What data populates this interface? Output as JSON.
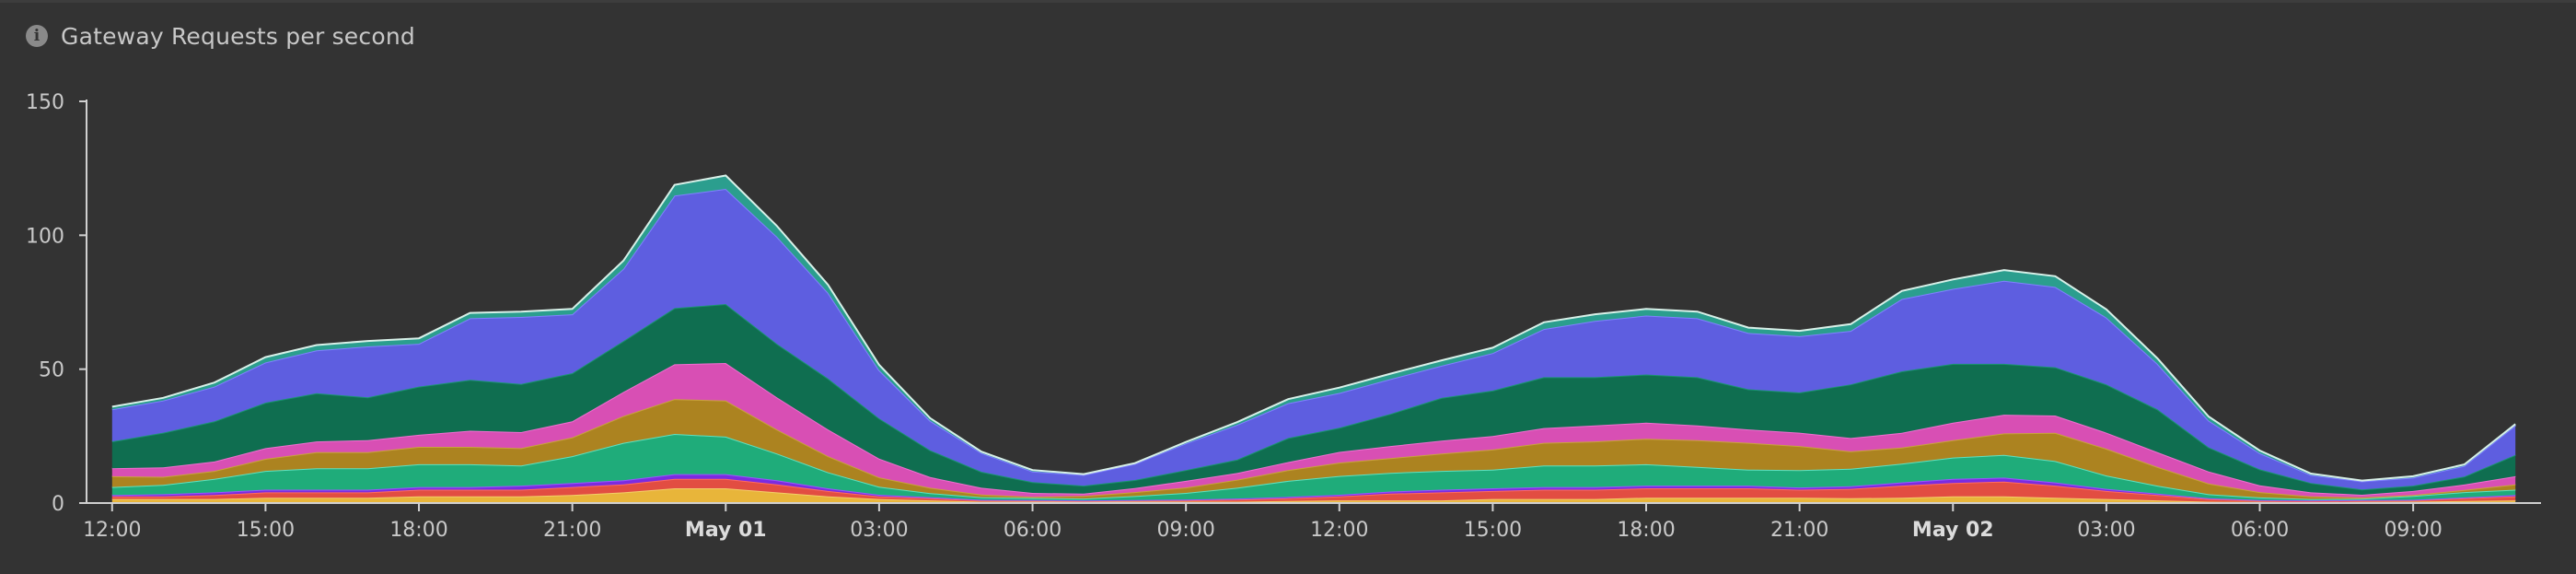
{
  "panel": {
    "title": "Gateway Requests per second",
    "info_icon": "info-icon"
  },
  "chart_data": {
    "type": "area",
    "stacked": true,
    "title": "Gateway Requests per second",
    "xlabel": "",
    "ylabel": "",
    "ylim": [
      0,
      150
    ],
    "y_ticks": [
      0,
      50,
      100,
      150
    ],
    "x_ticks": [
      "12:00",
      "15:00",
      "18:00",
      "21:00",
      "May 01",
      "03:00",
      "06:00",
      "09:00",
      "12:00",
      "15:00",
      "18:00",
      "21:00",
      "May 02",
      "03:00",
      "06:00",
      "09:00"
    ],
    "x_ticks_bold": [
      "May 01",
      "May 02"
    ],
    "x_range_hours": [
      -0.5,
      47.5
    ],
    "x_hours": [
      0,
      1,
      2,
      3,
      4,
      5,
      6,
      7,
      8,
      9,
      10,
      11,
      12,
      13,
      14,
      15,
      16,
      17,
      18,
      19,
      20,
      21,
      22,
      23,
      24,
      25,
      26,
      27,
      28,
      29,
      30,
      31,
      32,
      33,
      34,
      35,
      36,
      37,
      38,
      39,
      40,
      41,
      42,
      43,
      44,
      45,
      46,
      47
    ],
    "grid": false,
    "legend": "none",
    "series": [
      {
        "color": "#e8b53a",
        "stroke": "#f3cf6a",
        "values": [
          1.5,
          1.5,
          1.5,
          2,
          2,
          2,
          2.5,
          2.5,
          2.5,
          3,
          4,
          5.5,
          5.5,
          4,
          2.5,
          1.5,
          1,
          0.5,
          0.5,
          0.5,
          0.5,
          0.5,
          0.5,
          0.8,
          1,
          1,
          1,
          1.5,
          1.5,
          1.5,
          2,
          2,
          2,
          2,
          1.8,
          2,
          2.5,
          2.5,
          2,
          1.5,
          1,
          0.5,
          0.4,
          0.3,
          0.4,
          0.5,
          0.8,
          1
        ]
      },
      {
        "color": "#e24d42",
        "stroke": "#ff6b60",
        "values": [
          1,
          1,
          1.5,
          2,
          2,
          2,
          2.5,
          2.5,
          2.5,
          3,
          3,
          3.5,
          3.5,
          3,
          2,
          1,
          0.8,
          0.5,
          0.4,
          0.3,
          0.4,
          0.5,
          0.8,
          1,
          1.5,
          2.5,
          3,
          3,
          3.5,
          3.5,
          3.5,
          3.5,
          3.5,
          3,
          3.5,
          4.5,
          5,
          5.5,
          4.5,
          3,
          2,
          1,
          0.5,
          0.5,
          0.5,
          0.5,
          1,
          1.5
        ]
      },
      {
        "color": "#7b2be0",
        "stroke": "#9b55ff",
        "values": [
          0.5,
          0.8,
          1,
          1,
          1,
          1,
          1,
          1,
          1.5,
          1.5,
          1.5,
          1.8,
          1.8,
          1.5,
          1,
          0.6,
          0.4,
          0.2,
          0.2,
          0.2,
          0.2,
          0.3,
          0.4,
          0.5,
          0.6,
          0.8,
          1,
          1,
          1,
          1,
          1,
          1,
          1,
          0.8,
          1,
          1.2,
          1.5,
          1.5,
          1.2,
          0.8,
          0.5,
          0.3,
          0.2,
          0.2,
          0.2,
          0.2,
          0.3,
          0.5
        ]
      },
      {
        "color": "#1fac7a",
        "stroke": "#5fe0c0",
        "values": [
          3,
          3.5,
          5,
          7,
          8,
          8,
          8.5,
          8.5,
          7.5,
          10,
          14,
          15,
          14,
          10,
          6,
          3,
          1.5,
          1,
          0.8,
          0.7,
          1.5,
          2.5,
          4,
          6,
          7,
          7,
          7,
          7,
          8,
          8,
          8,
          7,
          6,
          6.5,
          6.5,
          7,
          8,
          8.5,
          8,
          5,
          3,
          1.5,
          1,
          0.5,
          0.5,
          1.5,
          2,
          2
        ]
      },
      {
        "color": "#ac8320",
        "stroke": "#c9a33d",
        "values": [
          4,
          3,
          3,
          4.5,
          6,
          6,
          6.5,
          6.5,
          6.5,
          7,
          10,
          13,
          13.5,
          9,
          6,
          3.5,
          2,
          1,
          0.4,
          1,
          1.5,
          2,
          3,
          4,
          5,
          5.5,
          6.5,
          7.5,
          8.5,
          9,
          9.5,
          10,
          10,
          9,
          6.5,
          6,
          6.5,
          8,
          10.5,
          10,
          7,
          4,
          2,
          1,
          0.5,
          0.3,
          0.8,
          2
        ]
      },
      {
        "color": "#d84fb4",
        "stroke": "#f06ed0",
        "values": [
          3,
          3.5,
          3.5,
          4,
          4,
          4.5,
          4.5,
          6,
          6,
          6,
          9,
          13,
          14,
          12,
          10,
          7,
          4,
          2.5,
          1.5,
          0.8,
          1.5,
          2.5,
          2.5,
          3,
          4,
          4.5,
          4.8,
          5,
          5.5,
          6,
          6,
          5.5,
          5,
          5,
          5,
          5.5,
          6.5,
          7,
          6.5,
          6,
          5.5,
          4.5,
          2.5,
          1.5,
          1,
          1.5,
          2,
          3
        ]
      },
      {
        "color": "#0f6e50",
        "stroke": "#1a9470",
        "values": [
          10,
          13,
          15,
          17,
          18,
          16,
          18,
          19,
          18,
          18,
          19,
          21,
          22,
          20,
          19,
          15,
          10,
          6,
          4,
          3,
          3,
          4,
          5,
          9,
          9,
          12,
          16,
          17,
          19,
          18,
          18,
          18,
          15,
          15,
          20,
          23,
          22,
          19,
          18,
          18,
          16,
          9,
          6,
          3.5,
          2,
          2,
          3,
          8
        ]
      },
      {
        "color": "#5e5ee0",
        "stroke": "#8080ff",
        "values": [
          12,
          12,
          13,
          15,
          16,
          19,
          16,
          23,
          25,
          22,
          27,
          42,
          43,
          40,
          32,
          18,
          11,
          7,
          4,
          4,
          6,
          10,
          13,
          13,
          13,
          13,
          12,
          14,
          18,
          21,
          22,
          22,
          21,
          21,
          20,
          27,
          28,
          31,
          30,
          25,
          17,
          10,
          6,
          3,
          3,
          3,
          4,
          11
        ]
      },
      {
        "color": "#2b9e8e",
        "stroke": "#d8f0e8",
        "values": [
          1,
          1,
          1.5,
          2,
          2,
          2,
          2,
          2,
          2,
          2,
          3,
          4,
          5,
          4,
          3,
          2,
          1,
          0.5,
          0.5,
          0.3,
          0.3,
          0.5,
          1,
          1.5,
          2,
          2,
          2,
          2,
          2.5,
          2.5,
          2.5,
          2.5,
          2,
          2,
          2.5,
          3,
          3.5,
          4,
          4,
          3,
          2,
          1.5,
          1,
          0.5,
          0.3,
          0.5,
          0.5,
          0.5
        ]
      }
    ]
  }
}
